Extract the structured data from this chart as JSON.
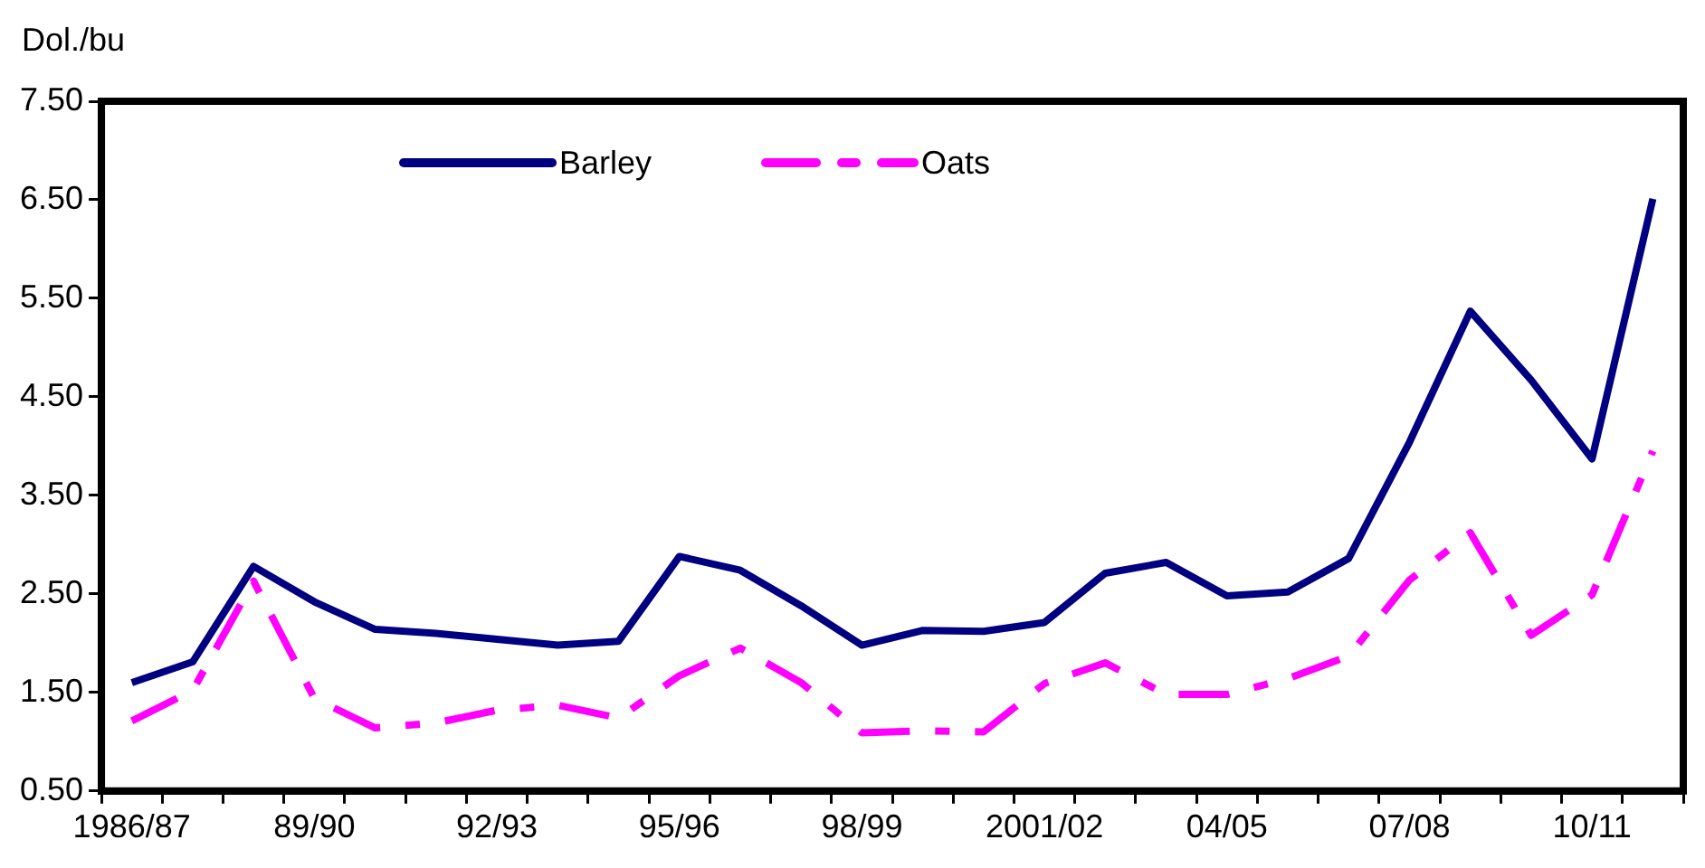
{
  "chart_data": {
    "type": "line",
    "ylabel": "Dol./bu",
    "categories": [
      "1986/87",
      null,
      null,
      "89/90",
      null,
      null,
      "92/93",
      null,
      null,
      "95/96",
      null,
      null,
      "98/99",
      null,
      null,
      "2001/02",
      null,
      null,
      "04/05",
      null,
      null,
      "07/08",
      null,
      null,
      "10/11",
      null
    ],
    "series": [
      {
        "name": "Barley",
        "color": "#000080",
        "line_style": "solid",
        "values": [
          1.6,
          1.81,
          2.78,
          2.42,
          2.14,
          2.1,
          2.04,
          1.98,
          2.02,
          2.88,
          2.74,
          2.38,
          1.98,
          2.13,
          2.12,
          2.21,
          2.71,
          2.82,
          2.48,
          2.52,
          2.86,
          4.04,
          5.37,
          4.67,
          3.87,
          6.51
        ]
      },
      {
        "name": "Oats",
        "color": "#ff00ff",
        "line_style": "dashed",
        "values": [
          1.21,
          1.52,
          2.63,
          1.44,
          1.14,
          1.19,
          1.32,
          1.37,
          1.24,
          1.67,
          1.95,
          1.6,
          1.09,
          1.11,
          1.1,
          1.59,
          1.8,
          1.48,
          1.48,
          1.64,
          1.87,
          2.64,
          3.12,
          2.08,
          2.49,
          3.95
        ]
      }
    ],
    "ylim": [
      0.5,
      7.5
    ],
    "yticks": [
      {
        "value": 0.5,
        "label": "0.50"
      },
      {
        "value": 1.5,
        "label": "1.50"
      },
      {
        "value": 2.5,
        "label": "2.50"
      },
      {
        "value": 3.5,
        "label": "3.50"
      },
      {
        "value": 4.5,
        "label": "4.50"
      },
      {
        "value": 5.5,
        "label": "5.50"
      },
      {
        "value": 6.5,
        "label": "6.50"
      },
      {
        "value": 7.5,
        "label": "7.50"
      }
    ],
    "grid": false,
    "legend": "top",
    "marker": "none"
  }
}
